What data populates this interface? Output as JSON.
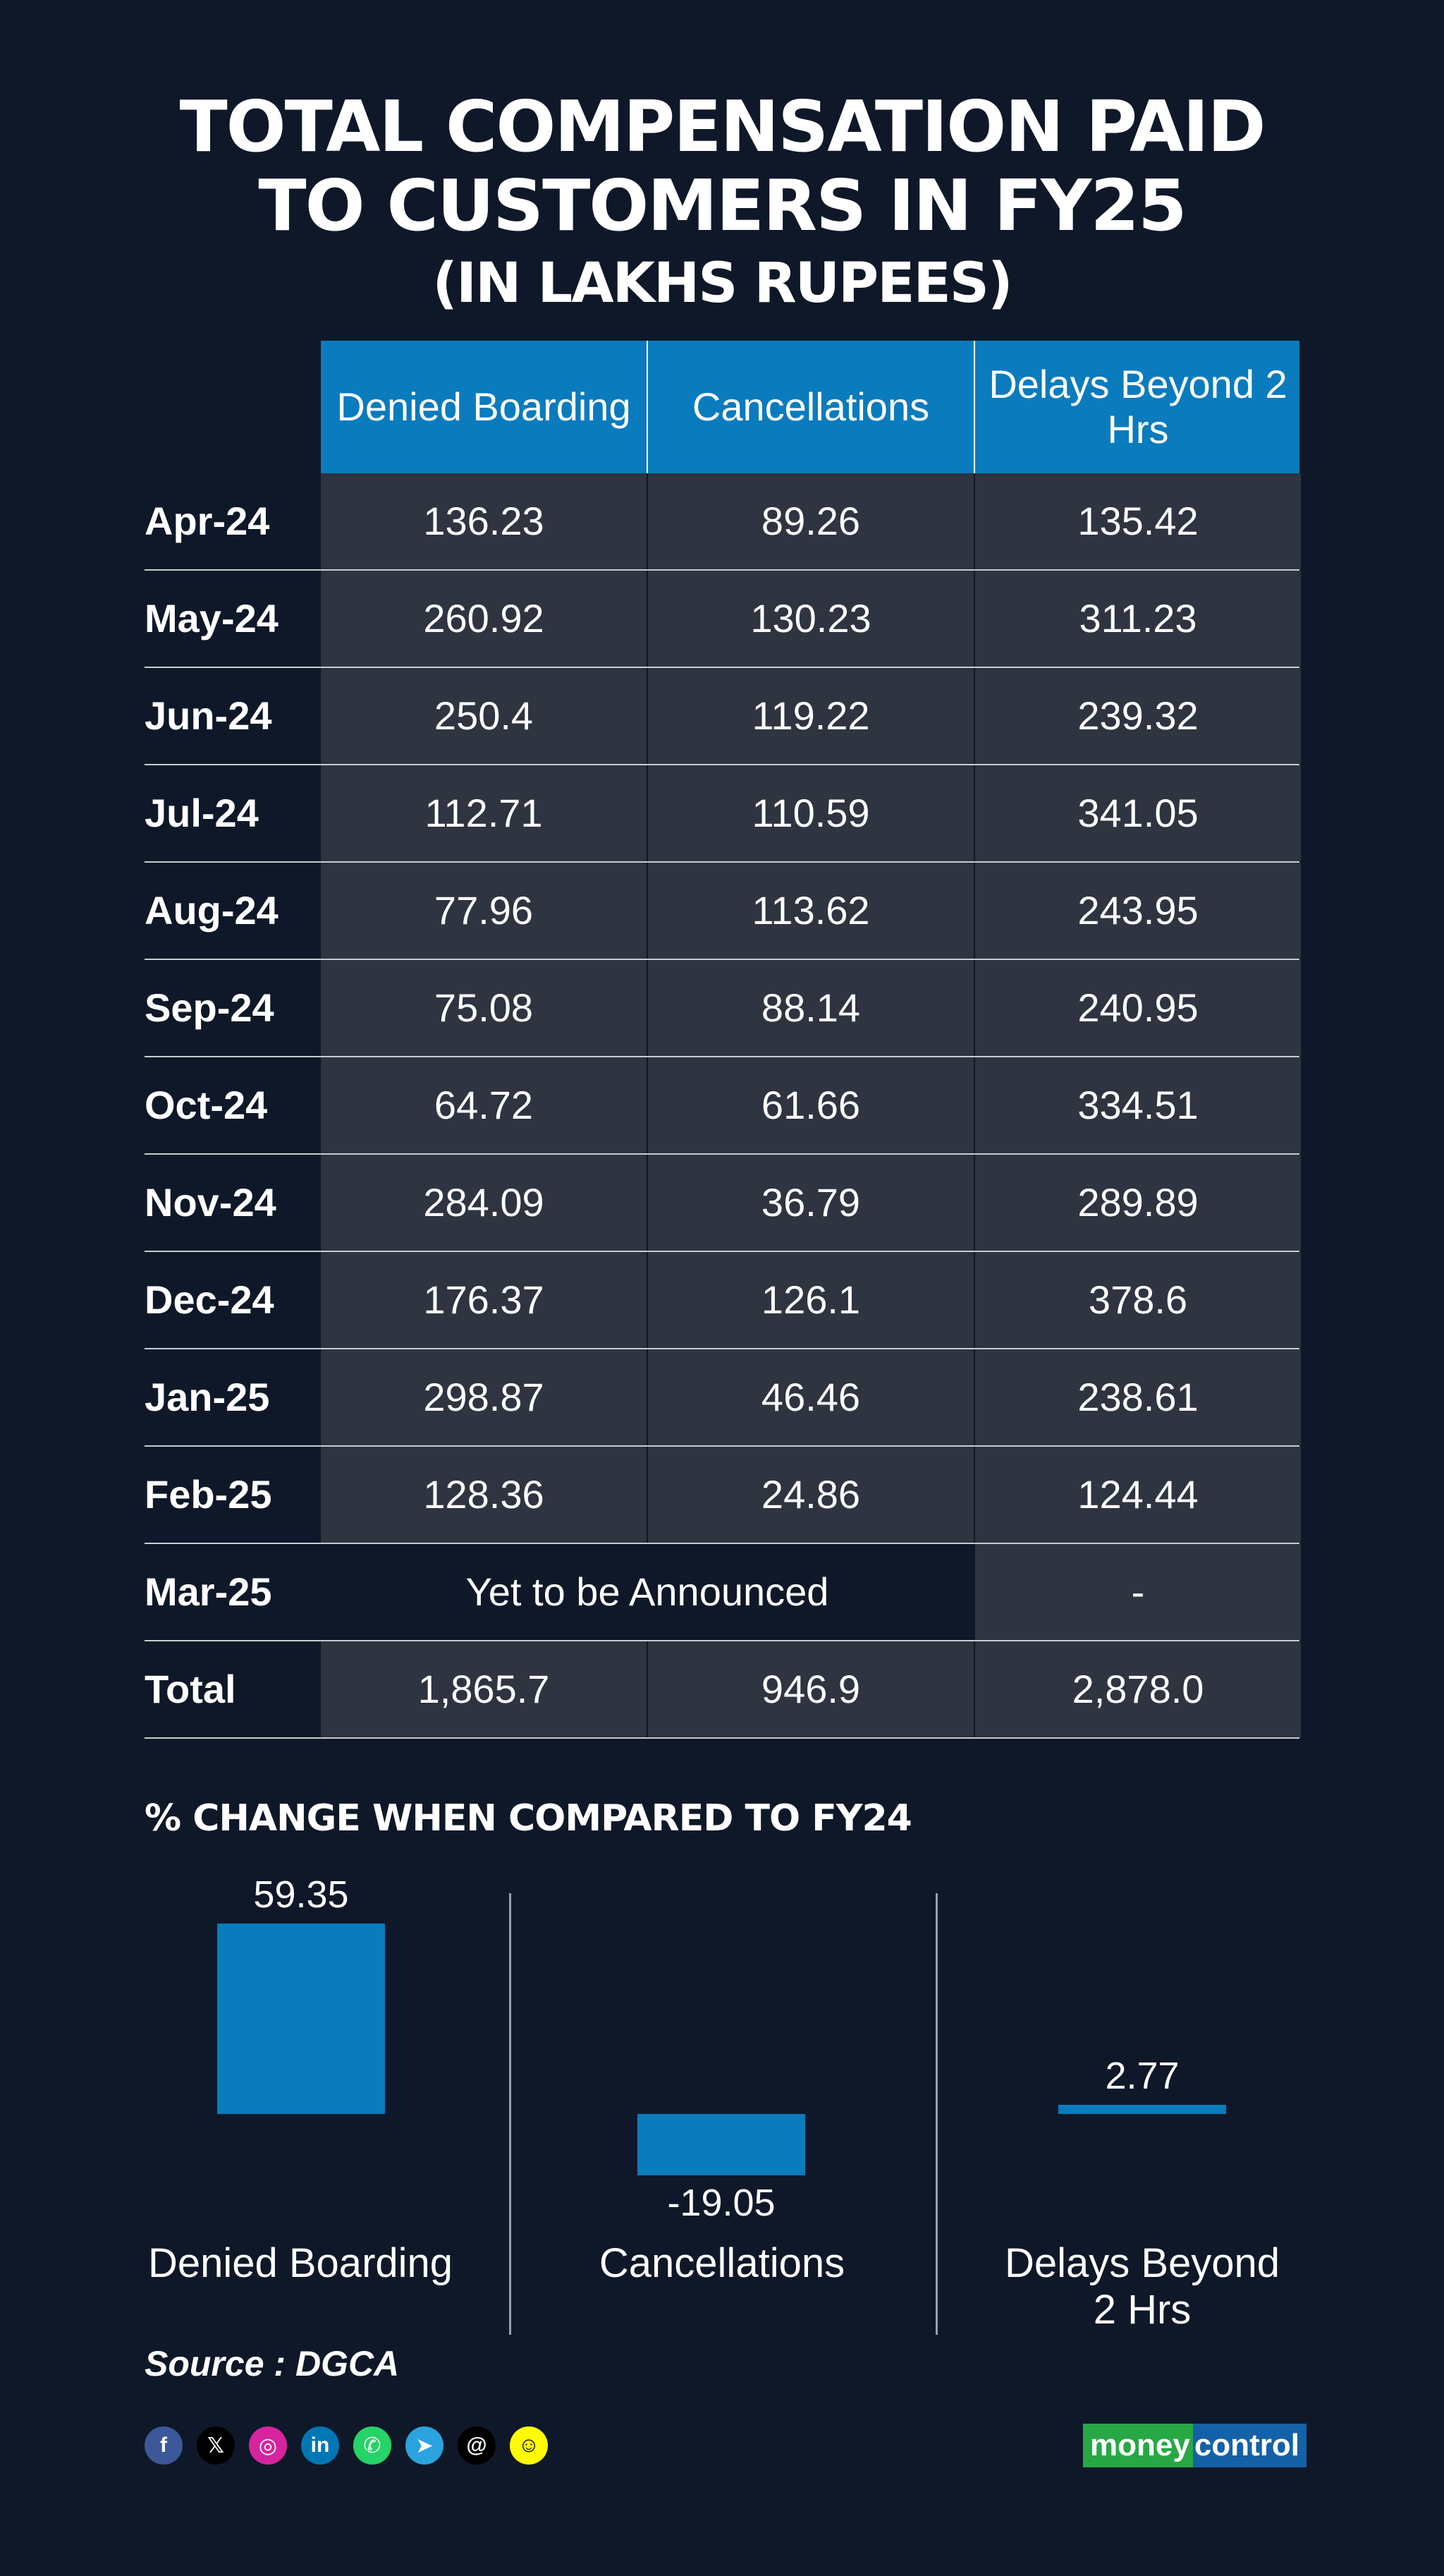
{
  "title": {
    "line1": "TOTAL COMPENSATION PAID",
    "line2": "TO CUSTOMERS IN FY25",
    "line3": "(IN LAKHS RUPEES)"
  },
  "table": {
    "headers": [
      "Denied Boarding",
      "Cancellations",
      "Delays Beyond 2 Hrs"
    ],
    "rows": [
      {
        "label": "Apr-24",
        "values": [
          "136.23",
          "89.26",
          "135.42"
        ]
      },
      {
        "label": "May-24",
        "values": [
          "260.92",
          "130.23",
          "311.23"
        ]
      },
      {
        "label": "Jun-24",
        "values": [
          "250.4",
          "119.22",
          "239.32"
        ]
      },
      {
        "label": "Jul-24",
        "values": [
          "112.71",
          "110.59",
          "341.05"
        ]
      },
      {
        "label": "Aug-24",
        "values": [
          "77.96",
          "113.62",
          "243.95"
        ]
      },
      {
        "label": "Sep-24",
        "values": [
          "75.08",
          "88.14",
          "240.95"
        ]
      },
      {
        "label": "Oct-24",
        "values": [
          "64.72",
          "61.66",
          "334.51"
        ]
      },
      {
        "label": "Nov-24",
        "values": [
          "284.09",
          "36.79",
          "289.89"
        ]
      },
      {
        "label": "Dec-24",
        "values": [
          "176.37",
          "126.1",
          "378.6"
        ]
      },
      {
        "label": "Jan-25",
        "values": [
          "298.87",
          "46.46",
          "238.61"
        ]
      },
      {
        "label": "Feb-25",
        "values": [
          "128.36",
          "24.86",
          "124.44"
        ]
      }
    ],
    "mar_row": {
      "label": "Mar-25",
      "merged": "Yet to be Announced",
      "last": "-"
    },
    "total_row": {
      "label": "Total",
      "values": [
        "1,865.7",
        "946.9",
        "2,878.0"
      ]
    }
  },
  "chart_data": [
    {
      "type": "table",
      "title": "TOTAL COMPENSATION PAID TO CUSTOMERS IN FY25 (IN LAKHS RUPEES)",
      "columns": [
        "",
        "Denied Boarding",
        "Cancellations",
        "Delays Beyond 2 Hrs"
      ],
      "rows": [
        [
          "Apr-24",
          136.23,
          89.26,
          135.42
        ],
        [
          "May-24",
          260.92,
          130.23,
          311.23
        ],
        [
          "Jun-24",
          250.4,
          119.22,
          239.32
        ],
        [
          "Jul-24",
          112.71,
          110.59,
          341.05
        ],
        [
          "Aug-24",
          77.96,
          113.62,
          243.95
        ],
        [
          "Sep-24",
          75.08,
          88.14,
          240.95
        ],
        [
          "Oct-24",
          64.72,
          61.66,
          334.51
        ],
        [
          "Nov-24",
          284.09,
          36.79,
          289.89
        ],
        [
          "Dec-24",
          176.37,
          126.1,
          378.6
        ],
        [
          "Jan-25",
          298.87,
          46.46,
          238.61
        ],
        [
          "Feb-25",
          128.36,
          24.86,
          124.44
        ],
        [
          "Mar-25",
          "Yet to be Announced",
          "Yet to be Announced",
          "-"
        ],
        [
          "Total",
          1865.7,
          946.9,
          2878.0
        ]
      ]
    },
    {
      "type": "bar",
      "title": "% CHANGE WHEN COMPARED TO FY24",
      "categories": [
        "Denied Boarding",
        "Cancellations",
        "Delays Beyond 2 Hrs"
      ],
      "values": [
        59.35,
        -19.05,
        2.77
      ],
      "value_labels": [
        "59.35",
        "-19.05",
        "2.77"
      ],
      "color": "#0a7bbd"
    }
  ],
  "change_section": {
    "heading": "% CHANGE WHEN COMPARED TO FY24",
    "cat_labels": [
      "Denied Boarding",
      "Cancellations",
      "Delays Beyond\n2 Hrs"
    ]
  },
  "source": "Source : DGCA",
  "socials": [
    {
      "icon": "facebook-icon",
      "glyph": "f",
      "color": "#3b5998"
    },
    {
      "icon": "x-icon",
      "glyph": "𝕏",
      "color": "#000000"
    },
    {
      "icon": "instagram-icon",
      "glyph": "◎",
      "color": "#d6249f"
    },
    {
      "icon": "linkedin-icon",
      "glyph": "in",
      "color": "#0077b5"
    },
    {
      "icon": "whatsapp-icon",
      "glyph": "✆",
      "color": "#25d366"
    },
    {
      "icon": "telegram-icon",
      "glyph": "➤",
      "color": "#2aa3df"
    },
    {
      "icon": "threads-icon",
      "glyph": "@",
      "color": "#000000"
    },
    {
      "icon": "snapchat-icon",
      "glyph": "☺",
      "color": "#fffc00"
    }
  ],
  "logo": {
    "part1": "money",
    "part2": "control"
  },
  "colors": {
    "background": "#0e1828",
    "accent": "#0a7bbd",
    "cell": "#2e3440"
  }
}
